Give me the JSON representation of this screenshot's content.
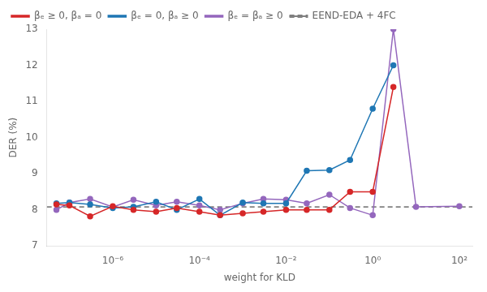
{
  "chart_data": {
    "type": "line",
    "xlabel": "weight for KLD",
    "ylabel": "DER (%)",
    "log": "x",
    "xlim": [
      3e-08,
      200
    ],
    "xticks": [
      {
        "value": 1e-06,
        "label": "10⁻⁶"
      },
      {
        "value": 0.0001,
        "label": "10⁻⁴"
      },
      {
        "value": 0.01,
        "label": "10⁻²"
      },
      {
        "value": 1,
        "label": "10⁰"
      },
      {
        "value": 100,
        "label": "10²"
      }
    ],
    "ylim": [
      7,
      13
    ],
    "yticks": [
      7,
      8,
      9,
      10,
      11,
      12,
      13
    ],
    "grid": false,
    "legend": "upper left",
    "baseline": {
      "name": "EEND-EDA + 4FC",
      "value": 8.08,
      "color": "gray",
      "line_style": "dashed"
    },
    "series": [
      {
        "name": "βₑ ≥ 0, βₐ = 0",
        "color": "#d62728",
        "marker": "circle",
        "line_style": "solid",
        "x": [
          5e-08,
          1e-07,
          3e-07,
          1e-06,
          3e-06,
          1e-05,
          3e-05,
          0.0001,
          0.0003,
          0.001,
          0.003,
          0.01,
          0.03,
          0.1,
          0.3,
          1.0,
          3.0
        ],
        "values": [
          8.15,
          8.12,
          7.82,
          8.1,
          8.0,
          7.95,
          8.05,
          7.95,
          7.85,
          7.9,
          7.95,
          8.0,
          8.0,
          8.0,
          8.5,
          8.5,
          11.4
        ]
      },
      {
        "name": "βₑ = 0, βₐ ≥ 0",
        "color": "#1f77b4",
        "marker": "circle",
        "line_style": "solid",
        "x": [
          5e-08,
          1e-07,
          3e-07,
          1e-06,
          3e-06,
          1e-05,
          3e-05,
          0.0001,
          0.0003,
          0.001,
          0.003,
          0.01,
          0.03,
          0.1,
          0.3,
          1.0,
          3.0
        ],
        "values": [
          8.18,
          8.2,
          8.15,
          8.05,
          8.08,
          8.22,
          8.0,
          8.3,
          7.85,
          8.2,
          8.18,
          8.18,
          9.08,
          9.1,
          9.38,
          10.8,
          12.0
        ]
      },
      {
        "name": "βₑ = βₐ ≥ 0",
        "color": "#9467bd",
        "marker": "circle",
        "line_style": "solid",
        "x": [
          5e-08,
          1e-07,
          3e-07,
          1e-06,
          3e-06,
          1e-05,
          3e-05,
          0.0001,
          0.0003,
          0.001,
          0.003,
          0.01,
          0.03,
          0.1,
          0.3,
          1.0,
          3.0,
          10.0,
          100.0
        ],
        "values": [
          8.0,
          8.2,
          8.3,
          8.08,
          8.28,
          8.12,
          8.22,
          8.12,
          8.0,
          8.18,
          8.3,
          8.28,
          8.18,
          8.42,
          8.05,
          7.85,
          13.0,
          8.08,
          8.1
        ]
      }
    ]
  }
}
